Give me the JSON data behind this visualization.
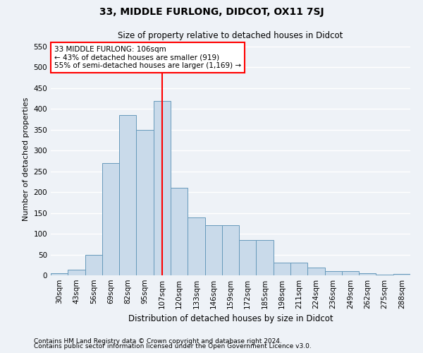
{
  "title": "33, MIDDLE FURLONG, DIDCOT, OX11 7SJ",
  "subtitle": "Size of property relative to detached houses in Didcot",
  "xlabel": "Distribution of detached houses by size in Didcot",
  "ylabel": "Number of detached properties",
  "footnote1": "Contains HM Land Registry data © Crown copyright and database right 2024.",
  "footnote2": "Contains public sector information licensed under the Open Government Licence v3.0.",
  "annotation_line1": "33 MIDDLE FURLONG: 106sqm",
  "annotation_line2": "← 43% of detached houses are smaller (919)",
  "annotation_line3": "55% of semi-detached houses are larger (1,169) →",
  "vline_label": "107sqm",
  "categories": [
    "30sqm",
    "43sqm",
    "56sqm",
    "69sqm",
    "82sqm",
    "95sqm",
    "107sqm",
    "120sqm",
    "133sqm",
    "146sqm",
    "159sqm",
    "172sqm",
    "185sqm",
    "198sqm",
    "211sqm",
    "224sqm",
    "236sqm",
    "249sqm",
    "262sqm",
    "275sqm",
    "288sqm"
  ],
  "values": [
    5,
    13,
    50,
    270,
    385,
    350,
    420,
    210,
    140,
    120,
    120,
    85,
    85,
    30,
    30,
    18,
    10,
    10,
    5,
    2,
    3
  ],
  "bar_color": "#c9daea",
  "bar_edge_color": "#6699bb",
  "vline_color": "red",
  "background_color": "#eef2f7",
  "grid_color": "white",
  "ylim": [
    0,
    560
  ],
  "yticks": [
    0,
    50,
    100,
    150,
    200,
    250,
    300,
    350,
    400,
    450,
    500,
    550
  ],
  "title_fontsize": 10,
  "subtitle_fontsize": 8.5,
  "annotation_fontsize": 7.5,
  "ylabel_fontsize": 8,
  "xlabel_fontsize": 8.5,
  "tick_fontsize": 7.5,
  "footnote_fontsize": 6.5
}
